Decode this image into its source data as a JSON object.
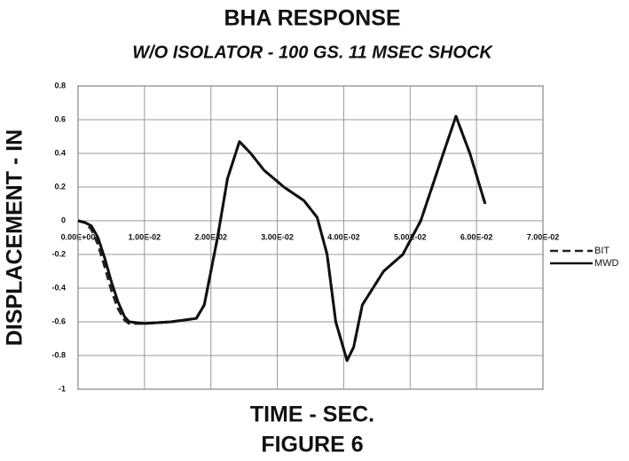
{
  "chart_data": {
    "type": "line",
    "title": "BHA RESPONSE",
    "subtitle": "W/O ISOLATOR - 100 GS. 11 MSEC SHOCK",
    "x_label": "TIME - SEC.",
    "y_label": "DISPLACEMENT - IN",
    "caption": "FIGURE 6",
    "x": [
      0,
      0.001,
      0.002,
      0.003,
      0.004,
      0.005,
      0.006,
      0.007,
      0.0077,
      0.01,
      0.014,
      0.0178,
      0.019,
      0.021,
      0.0225,
      0.0243,
      0.026,
      0.028,
      0.031,
      0.034,
      0.036,
      0.0375,
      0.0388,
      0.0405,
      0.0415,
      0.0428,
      0.046,
      0.0489,
      0.0516,
      0.055,
      0.0569,
      0.059,
      0.0613
    ],
    "series": [
      {
        "name": "BIT",
        "color": "#222",
        "dash": true,
        "values": [
          0,
          -0.01,
          -0.05,
          -0.14,
          -0.27,
          -0.41,
          -0.52,
          -0.59,
          -0.61,
          -0.61,
          -0.6,
          -0.58,
          -0.5,
          -0.1,
          0.25,
          0.47,
          0.4,
          0.3,
          0.2,
          0.12,
          0.02,
          -0.2,
          -0.6,
          -0.83,
          -0.75,
          -0.5,
          -0.3,
          -0.2,
          0.0,
          0.4,
          0.62,
          0.4,
          0.1
        ]
      },
      {
        "name": "MWD",
        "color": "#111",
        "dash": false,
        "values": [
          0,
          -0.01,
          -0.03,
          -0.1,
          -0.22,
          -0.36,
          -0.48,
          -0.57,
          -0.6,
          -0.61,
          -0.6,
          -0.58,
          -0.5,
          -0.1,
          0.25,
          0.47,
          0.4,
          0.3,
          0.2,
          0.12,
          0.02,
          -0.2,
          -0.6,
          -0.83,
          -0.75,
          -0.5,
          -0.3,
          -0.2,
          0.0,
          0.4,
          0.62,
          0.4,
          0.1
        ]
      }
    ],
    "xlim": [
      0,
      0.07
    ],
    "ylim": [
      -1,
      0.8
    ],
    "xticks": [
      {
        "value": 0,
        "label": "0.00E+00"
      },
      {
        "value": 0.01,
        "label": "1.00E-02"
      },
      {
        "value": 0.02,
        "label": "2.00E-02"
      },
      {
        "value": 0.03,
        "label": "3.00E-02"
      },
      {
        "value": 0.04,
        "label": "4.00E-02"
      },
      {
        "value": 0.05,
        "label": "5.00E-02"
      },
      {
        "value": 0.06,
        "label": "6.00E-02"
      },
      {
        "value": 0.07,
        "label": "7.00E-02"
      }
    ],
    "yticks": [
      0.8,
      0.6,
      0.4,
      0.2,
      0,
      -0.2,
      -0.4,
      -0.6,
      -0.8,
      -1
    ],
    "grid": true
  }
}
